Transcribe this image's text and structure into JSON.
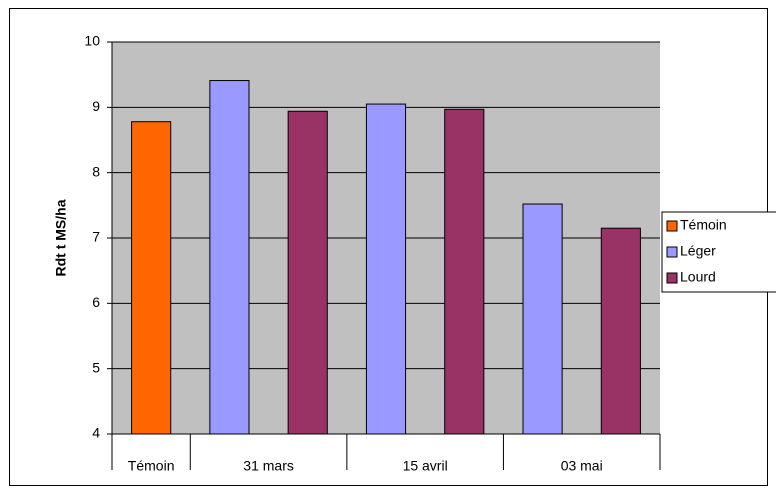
{
  "chart_data": {
    "type": "bar",
    "y_label": "Rdt t MS/ha",
    "categories": [
      "Témoin",
      "31 mars",
      "15 avril",
      "03 mai"
    ],
    "series": [
      {
        "name": "Témoin",
        "color": "#ff6600",
        "values": [
          8.78,
          null,
          null,
          null
        ]
      },
      {
        "name": "Léger",
        "color": "#9999ff",
        "values": [
          null,
          9.41,
          9.05,
          7.52
        ]
      },
      {
        "name": "Lourd",
        "color": "#993366",
        "values": [
          null,
          8.94,
          8.97,
          7.15
        ]
      }
    ],
    "ylim": [
      4,
      10
    ],
    "yticks": [
      4,
      5,
      6,
      7,
      8,
      9,
      10
    ],
    "grid": true,
    "legend": "right"
  }
}
